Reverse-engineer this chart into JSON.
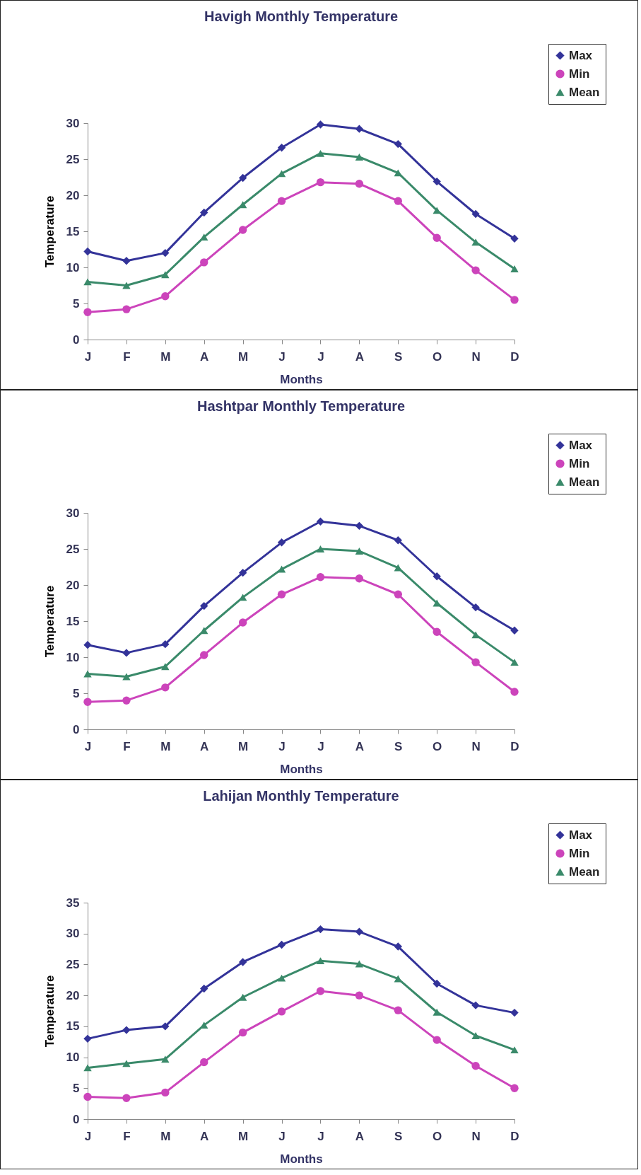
{
  "chart_data": [
    {
      "type": "line",
      "title": "Havigh Monthly Temperature",
      "xlabel": "Months",
      "ylabel": "Temperature",
      "categories": [
        "J",
        "F",
        "M",
        "A",
        "M",
        "J",
        "J",
        "A",
        "S",
        "O",
        "N",
        "D"
      ],
      "ylim": [
        0,
        30
      ],
      "yticks": [
        0,
        5,
        10,
        15,
        20,
        25,
        30
      ],
      "grid": false,
      "legend": "top right",
      "series": [
        {
          "name": "Max",
          "color": "#333399",
          "marker": "diamond",
          "values": [
            12.2,
            10.9,
            12.0,
            17.6,
            22.4,
            26.6,
            29.8,
            29.2,
            27.1,
            21.9,
            17.4,
            14.0
          ]
        },
        {
          "name": "Min",
          "color": "#cc44bb",
          "marker": "circle",
          "values": [
            3.8,
            4.2,
            6.0,
            10.7,
            15.2,
            19.2,
            21.8,
            21.6,
            19.2,
            14.1,
            9.6,
            5.5
          ]
        },
        {
          "name": "Mean",
          "color": "#3a8a6a",
          "marker": "triangle",
          "values": [
            8.0,
            7.5,
            9.0,
            14.2,
            18.7,
            23.0,
            25.8,
            25.3,
            23.1,
            17.9,
            13.5,
            9.8
          ]
        }
      ]
    },
    {
      "type": "line",
      "title": "Hashtpar Monthly Temperature",
      "xlabel": "Months",
      "ylabel": "Temperature",
      "categories": [
        "J",
        "F",
        "M",
        "A",
        "M",
        "J",
        "J",
        "A",
        "S",
        "O",
        "N",
        "D"
      ],
      "ylim": [
        0,
        30
      ],
      "yticks": [
        0,
        5,
        10,
        15,
        20,
        25,
        30
      ],
      "grid": false,
      "legend": "top right",
      "series": [
        {
          "name": "Max",
          "color": "#333399",
          "marker": "diamond",
          "values": [
            11.7,
            10.6,
            11.8,
            17.1,
            21.7,
            25.9,
            28.8,
            28.2,
            26.2,
            21.2,
            16.9,
            13.7
          ]
        },
        {
          "name": "Min",
          "color": "#cc44bb",
          "marker": "circle",
          "values": [
            3.8,
            4.0,
            5.8,
            10.3,
            14.8,
            18.7,
            21.1,
            20.9,
            18.7,
            13.5,
            9.3,
            5.2
          ]
        },
        {
          "name": "Mean",
          "color": "#3a8a6a",
          "marker": "triangle",
          "values": [
            7.7,
            7.3,
            8.7,
            13.7,
            18.3,
            22.2,
            25.0,
            24.7,
            22.4,
            17.5,
            13.1,
            9.3
          ]
        }
      ]
    },
    {
      "type": "line",
      "title": "Lahijan Monthly Temperature",
      "xlabel": "Months",
      "ylabel": "Temperature",
      "categories": [
        "J",
        "F",
        "M",
        "A",
        "M",
        "J",
        "J",
        "A",
        "S",
        "O",
        "N",
        "D"
      ],
      "ylim": [
        0,
        35
      ],
      "yticks": [
        0,
        5,
        10,
        15,
        20,
        25,
        30,
        35
      ],
      "grid": false,
      "legend": "top right",
      "series": [
        {
          "name": "Max",
          "color": "#333399",
          "marker": "diamond",
          "values": [
            13.0,
            14.4,
            15.0,
            21.1,
            25.4,
            28.2,
            30.7,
            30.3,
            27.9,
            21.9,
            18.4,
            17.2
          ]
        },
        {
          "name": "Min",
          "color": "#cc44bb",
          "marker": "circle",
          "values": [
            3.6,
            3.4,
            4.3,
            9.2,
            14.0,
            17.4,
            20.7,
            20.0,
            17.6,
            12.8,
            8.6,
            5.0
          ]
        },
        {
          "name": "Mean",
          "color": "#3a8a6a",
          "marker": "triangle",
          "values": [
            8.3,
            9.0,
            9.7,
            15.2,
            19.7,
            22.8,
            25.6,
            25.1,
            22.7,
            17.3,
            13.5,
            11.2
          ]
        }
      ]
    }
  ]
}
